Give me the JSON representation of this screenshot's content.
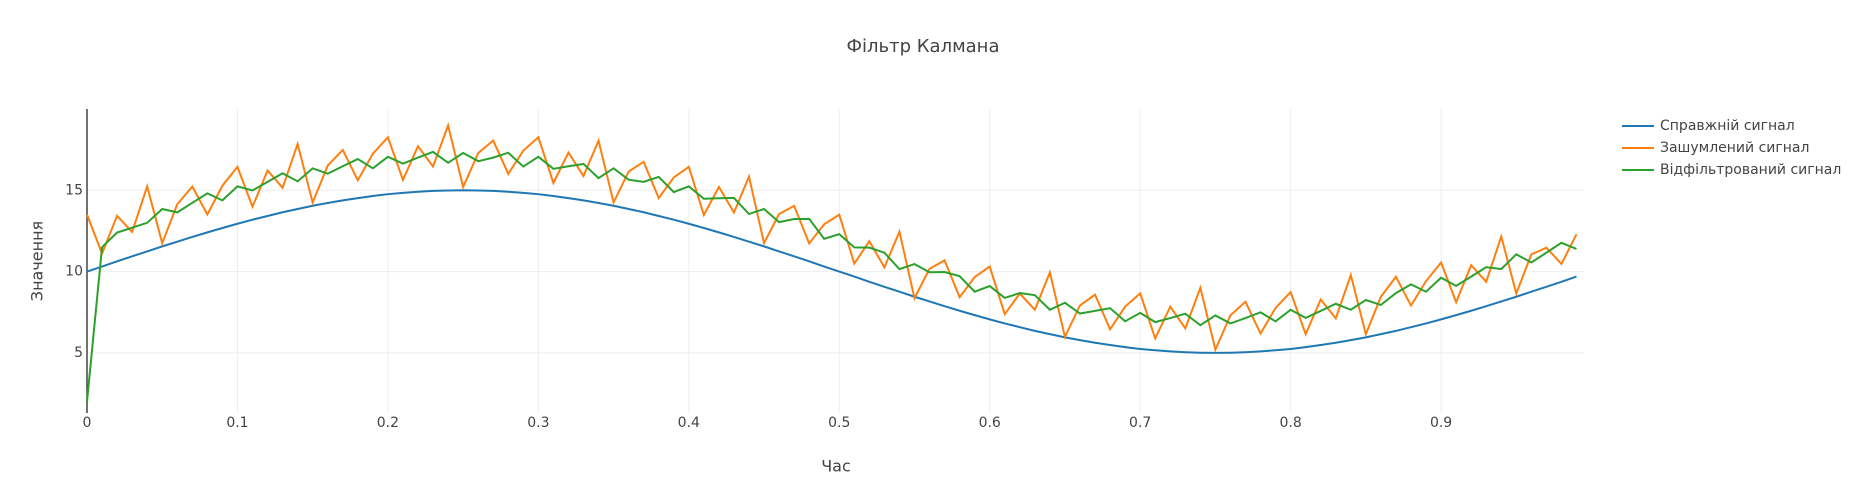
{
  "chart_data": {
    "type": "line",
    "title": "Фільтр Калмана",
    "x_label": "Час",
    "y_label": "Значення",
    "xlim": [
      0,
      0.995
    ],
    "ylim": [
      1.3,
      20
    ],
    "xticks": [
      0,
      0.1,
      0.2,
      0.3,
      0.4,
      0.5,
      0.6,
      0.7,
      0.8,
      0.9
    ],
    "yticks": [
      5,
      10,
      15
    ],
    "grid": true,
    "legend": "right",
    "x": [
      0,
      0.01,
      0.02,
      0.03,
      0.04,
      0.05,
      0.06,
      0.07,
      0.08,
      0.09,
      0.1,
      0.11,
      0.12,
      0.13,
      0.14,
      0.15,
      0.16,
      0.17,
      0.18,
      0.19,
      0.2,
      0.21,
      0.22,
      0.23,
      0.24,
      0.25,
      0.26,
      0.27,
      0.28,
      0.29,
      0.3,
      0.31,
      0.32,
      0.33,
      0.34,
      0.35,
      0.36,
      0.37,
      0.38,
      0.39,
      0.4,
      0.41,
      0.42,
      0.43,
      0.44,
      0.45,
      0.46,
      0.47,
      0.48,
      0.49,
      0.5,
      0.51,
      0.52,
      0.53,
      0.54,
      0.55,
      0.56,
      0.57,
      0.58,
      0.59,
      0.6,
      0.61,
      0.62,
      0.63,
      0.64,
      0.65,
      0.66,
      0.67,
      0.68,
      0.69,
      0.7,
      0.71,
      0.72,
      0.73,
      0.74,
      0.75,
      0.76,
      0.77,
      0.78,
      0.79,
      0.8,
      0.81,
      0.82,
      0.83,
      0.84,
      0.85,
      0.86,
      0.87,
      0.88,
      0.89,
      0.9,
      0.91,
      0.92,
      0.93,
      0.94,
      0.95,
      0.96,
      0.97,
      0.98,
      0.99
    ],
    "series": [
      {
        "name": "Справжній сигнал",
        "color": "#1f77b4",
        "values": [
          10,
          10.31,
          10.63,
          10.94,
          11.24,
          11.55,
          11.84,
          12.13,
          12.41,
          12.68,
          12.94,
          13.19,
          13.42,
          13.65,
          13.85,
          14.05,
          14.22,
          14.38,
          14.52,
          14.65,
          14.76,
          14.84,
          14.91,
          14.96,
          14.99,
          15,
          14.99,
          14.96,
          14.91,
          14.84,
          14.76,
          14.65,
          14.52,
          14.38,
          14.22,
          14.05,
          13.85,
          13.65,
          13.42,
          13.19,
          12.94,
          12.68,
          12.41,
          12.13,
          11.84,
          11.55,
          11.24,
          10.94,
          10.63,
          10.31,
          10,
          9.69,
          9.37,
          9.06,
          8.76,
          8.45,
          8.16,
          7.87,
          7.59,
          7.32,
          7.06,
          6.81,
          6.58,
          6.35,
          6.15,
          5.95,
          5.78,
          5.62,
          5.48,
          5.35,
          5.24,
          5.16,
          5.09,
          5.04,
          5.01,
          5,
          5.01,
          5.04,
          5.09,
          5.16,
          5.24,
          5.35,
          5.48,
          5.62,
          5.78,
          5.95,
          6.15,
          6.35,
          6.58,
          6.81,
          7.06,
          7.32,
          7.59,
          7.87,
          8.16,
          8.45,
          8.76,
          9.06,
          9.37,
          9.69
        ]
      },
      {
        "name": "Зашумлений сигнал",
        "color": "#ff7f0e",
        "values": [
          13.5,
          11.11,
          13.43,
          12.44,
          15.24,
          11.75,
          14.14,
          15.23,
          13.51,
          15.28,
          16.44,
          13.99,
          16.22,
          15.15,
          17.85,
          14.25,
          16.52,
          17.48,
          15.62,
          17.25,
          18.26,
          15.64,
          17.71,
          16.46,
          18.99,
          15.2,
          17.29,
          18.06,
          16.01,
          17.44,
          18.26,
          15.45,
          17.32,
          15.88,
          18.05,
          14.25,
          16.15,
          16.75,
          14.52,
          15.79,
          16.44,
          13.48,
          15.21,
          13.63,
          15.84,
          11.75,
          13.54,
          14.04,
          11.73,
          12.91,
          13.5,
          10.49,
          11.87,
          10.26,
          12.45,
          8.36,
          10.17,
          10.69,
          8.42,
          9.66,
          10.31,
          7.38,
          8.65,
          7.65,
          9.95,
          5.98,
          7.92,
          8.58,
          6.45,
          7.84,
          8.66,
          5.89,
          7.84,
          6.51,
          9,
          5.2,
          7.31,
          8.14,
          6.19,
          7.76,
          8.74,
          6.15,
          8.28,
          7.12,
          9.78,
          6.15,
          8.45,
          9.68,
          7.91,
          9.41,
          10.56,
          8.12,
          10.39,
          9.37,
          12.16,
          8.65,
          11.06,
          11.47,
          10.47,
          12.29
        ]
      },
      {
        "name": "Відфільтрований сигнал",
        "color": "#2ca02c",
        "values": [
          2,
          11.5,
          12.4,
          12.7,
          13,
          13.85,
          13.64,
          14.23,
          14.81,
          14.38,
          15.24,
          14.99,
          15.52,
          16.05,
          15.55,
          16.35,
          16.02,
          16.48,
          16.92,
          16.35,
          17.06,
          16.64,
          17.01,
          17.36,
          16.69,
          17.3,
          16.79,
          17.01,
          17.31,
          16.46,
          17.06,
          16.32,
          16.48,
          16.62,
          15.75,
          16.35,
          15.65,
          15.52,
          15.82,
          14.89,
          15.24,
          14.48,
          14.51,
          14.53,
          13.54,
          13.85,
          13.04,
          13.23,
          13.24,
          12.01,
          12.3,
          11.49,
          11.47,
          11.16,
          10.15,
          10.46,
          9.96,
          9.97,
          9.72,
          8.76,
          9.11,
          8.38,
          8.68,
          8.55,
          7.65,
          8.08,
          7.42,
          7.58,
          7.75,
          6.94,
          7.46,
          6.89,
          7.14,
          7.41,
          6.7,
          7.3,
          6.81,
          7.14,
          7.49,
          6.94,
          7.65,
          7.15,
          7.58,
          8.02,
          7.65,
          8.25,
          7.95,
          8.68,
          9.21,
          8.76,
          9.62,
          9.12,
          9.69,
          10.27,
          10.15,
          11.06,
          10.56,
          11.16,
          11.77,
          11.39
        ]
      }
    ]
  }
}
